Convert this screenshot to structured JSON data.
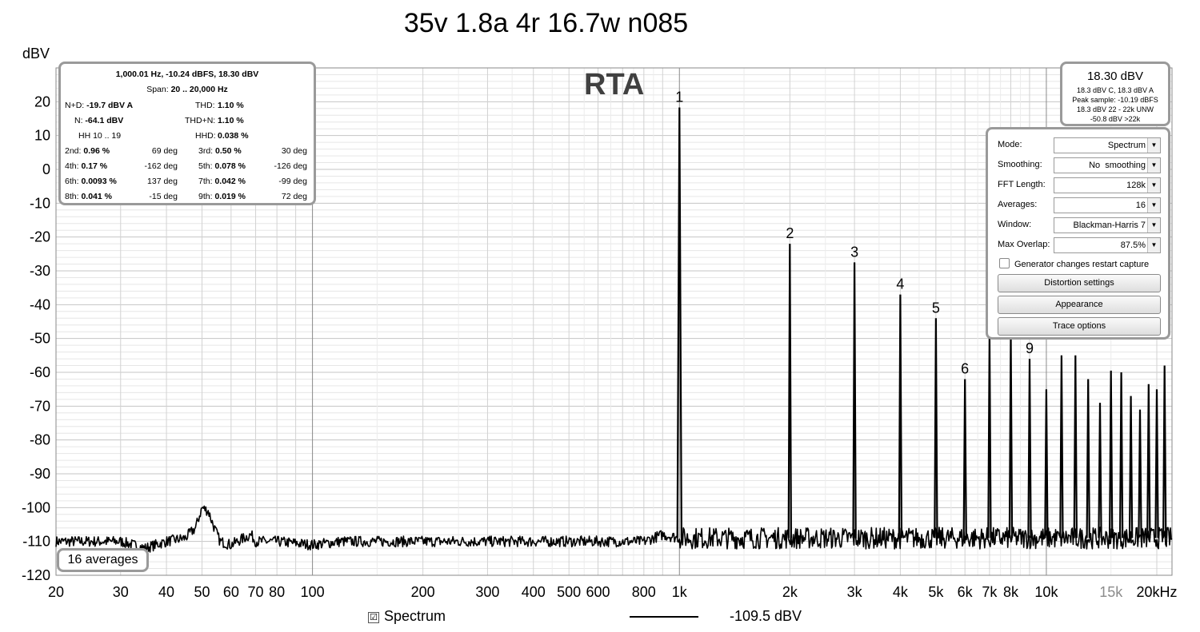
{
  "chart_data": {
    "type": "line",
    "title": "35v 1.8a 4r 16.7w n085",
    "panel_label": "RTA",
    "ylabel": "dBV",
    "x_scale": "log",
    "xlim": [
      20,
      22000
    ],
    "ylim": [
      -120,
      30
    ],
    "grid": true,
    "y_ticks": [
      30,
      20,
      10,
      0,
      -10,
      -20,
      -30,
      -40,
      -50,
      -60,
      -70,
      -80,
      -90,
      -100,
      -110,
      -120
    ],
    "y_tick_labels": [
      "",
      "20",
      "10",
      "0",
      "-10",
      "-20",
      "-30",
      "-40",
      "-50",
      "-60",
      "-70",
      "-80",
      "-90",
      "-100",
      "-110",
      "-120"
    ],
    "x_ticks": [
      {
        "value": 20,
        "label": "20"
      },
      {
        "value": 30,
        "label": "30"
      },
      {
        "value": 40,
        "label": "40"
      },
      {
        "value": 50,
        "label": "50"
      },
      {
        "value": 60,
        "label": "60"
      },
      {
        "value": 70,
        "label": "70"
      },
      {
        "value": 80,
        "label": "80"
      },
      {
        "value": 100,
        "label": "100"
      },
      {
        "value": 200,
        "label": "200"
      },
      {
        "value": 300,
        "label": "300"
      },
      {
        "value": 400,
        "label": "400"
      },
      {
        "value": 500,
        "label": "500"
      },
      {
        "value": 600,
        "label": "600"
      },
      {
        "value": 800,
        "label": "800"
      },
      {
        "value": 1000,
        "label": "1k"
      },
      {
        "value": 2000,
        "label": "2k"
      },
      {
        "value": 3000,
        "label": "3k"
      },
      {
        "value": 4000,
        "label": "4k"
      },
      {
        "value": 5000,
        "label": "5k"
      },
      {
        "value": 6000,
        "label": "6k"
      },
      {
        "value": 7000,
        "label": "7k"
      },
      {
        "value": 8000,
        "label": "8k"
      },
      {
        "value": 10000,
        "label": "10k"
      },
      {
        "value": 15000,
        "label": "15k",
        "muted": true
      },
      {
        "value": 20000,
        "label": "20kHz"
      }
    ],
    "series": [
      {
        "name": "Spectrum",
        "noise_floor": [
          [
            20,
            -110
          ],
          [
            30,
            -110
          ],
          [
            35,
            -112
          ],
          [
            40,
            -110
          ],
          [
            45,
            -109
          ],
          [
            48,
            -106
          ],
          [
            50,
            -100
          ],
          [
            52,
            -101
          ],
          [
            54,
            -106
          ],
          [
            56,
            -110
          ],
          [
            60,
            -111
          ],
          [
            65,
            -109
          ],
          [
            68,
            -108
          ],
          [
            70,
            -110
          ],
          [
            80,
            -110
          ],
          [
            100,
            -111
          ],
          [
            120,
            -110
          ],
          [
            150,
            -110
          ],
          [
            200,
            -110
          ],
          [
            300,
            -110
          ],
          [
            500,
            -110
          ],
          [
            800,
            -110
          ],
          [
            900,
            -108
          ],
          [
            1000,
            -109
          ],
          [
            1100,
            -109
          ],
          [
            2000,
            -109
          ],
          [
            5000,
            -109
          ],
          [
            10000,
            -109
          ],
          [
            22000,
            -109
          ]
        ],
        "peaks": [
          {
            "freq": 1000,
            "level": 18.3
          },
          {
            "freq": 2000,
            "level": -22
          },
          {
            "freq": 3000,
            "level": -27.5
          },
          {
            "freq": 4000,
            "level": -37
          },
          {
            "freq": 5000,
            "level": -44
          },
          {
            "freq": 6000,
            "level": -62
          },
          {
            "freq": 7000,
            "level": -48
          },
          {
            "freq": 8000,
            "level": -48
          },
          {
            "freq": 9000,
            "level": -56
          },
          {
            "freq": 10000,
            "level": -65
          },
          {
            "freq": 11000,
            "level": -55
          },
          {
            "freq": 12000,
            "level": -55
          },
          {
            "freq": 13000,
            "level": -62
          },
          {
            "freq": 14000,
            "level": -69
          },
          {
            "freq": 15000,
            "level": -59.5
          },
          {
            "freq": 16000,
            "level": -60
          },
          {
            "freq": 17000,
            "level": -67
          },
          {
            "freq": 18000,
            "level": -71
          },
          {
            "freq": 19000,
            "level": -63.5
          },
          {
            "freq": 20000,
            "level": -65
          },
          {
            "freq": 21000,
            "level": -58
          }
        ]
      }
    ],
    "harmonic_markers": [
      {
        "label": "1",
        "freq": 1000,
        "level": 18.3
      },
      {
        "label": "2",
        "freq": 2000,
        "level": -22
      },
      {
        "label": "3",
        "freq": 3000,
        "level": -27.5
      },
      {
        "label": "4",
        "freq": 4000,
        "level": -37
      },
      {
        "label": "5",
        "freq": 5000,
        "level": -44
      },
      {
        "label": "6",
        "freq": 6000,
        "level": -62
      },
      {
        "label": "9",
        "freq": 9000,
        "level": -56
      }
    ]
  },
  "readout": {
    "header": "1,000.01 Hz, -10.24 dBFS, 18.30 dBV",
    "span_label": "Span:",
    "span_value": "20 .. 20,000 Hz",
    "nd_label": "N+D:",
    "nd_value": "-19.7 dBV A",
    "thd_label": "THD:",
    "thd_value": "1.10 %",
    "n_label": "N:",
    "n_value": "-64.1 dBV",
    "thdn_label": "THD+N:",
    "thdn_value": "1.10 %",
    "hh_label": "HH 10 .. 19",
    "hhd_label": "HHD:",
    "hhd_value": "0.038 %",
    "harmonics": [
      {
        "label": "2nd:",
        "value": "0.96 %",
        "phase": "69 deg",
        "label2": "3rd:",
        "value2": "0.50 %",
        "phase2": "30 deg"
      },
      {
        "label": "4th:",
        "value": "0.17 %",
        "phase": "-162 deg",
        "label2": "5th:",
        "value2": "0.078 %",
        "phase2": "-126 deg"
      },
      {
        "label": "6th:",
        "value": "0.0093 %",
        "phase": "137 deg",
        "label2": "7th:",
        "value2": "0.042 %",
        "phase2": "-99 deg"
      },
      {
        "label": "8th:",
        "value": "0.041 %",
        "phase": "-15 deg",
        "label2": "9th:",
        "value2": "0.019 %",
        "phase2": "72 deg"
      }
    ]
  },
  "peak_panel": {
    "main": "18.30 dBV",
    "lines": [
      "18.3 dBV C, 18.3 dBV A",
      "Peak sample: -10.19 dBFS",
      "18.3 dBV 22 - 22k UNW",
      "-50.8 dBV >22k"
    ]
  },
  "settings": {
    "rows": [
      {
        "label": "Mode:",
        "value": "Spectrum"
      },
      {
        "label": "Smoothing:",
        "value": "No  smoothing"
      },
      {
        "label": "FFT Length:",
        "value": "128k"
      },
      {
        "label": "Averages:",
        "value": "16"
      },
      {
        "label": "Window:",
        "value": "Blackman-Harris 7"
      },
      {
        "label": "Max Overlap:",
        "value": "87.5%"
      }
    ],
    "generator_label": "Generator changes restart capture",
    "buttons": [
      "Distortion settings",
      "Appearance",
      "Trace options"
    ]
  },
  "averages_badge": "16 averages",
  "legend": {
    "checkbox": "☑",
    "name": "Spectrum",
    "value": "-109.5 dBV"
  }
}
